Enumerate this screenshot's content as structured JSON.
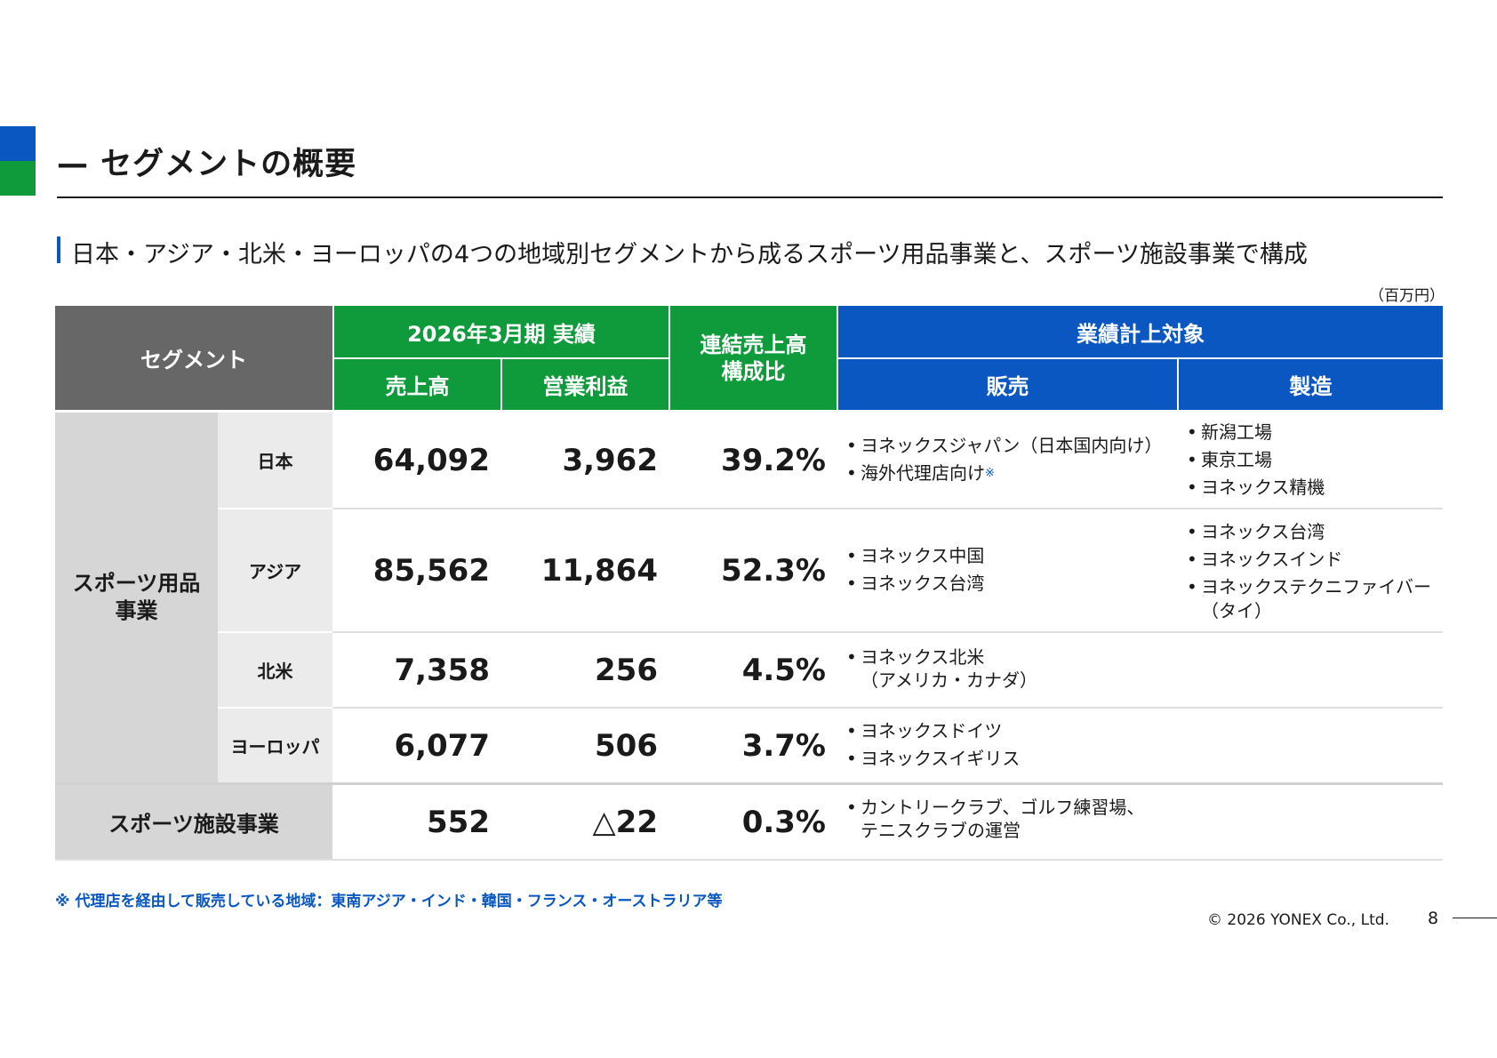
{
  "header": {
    "title": "— セグメントの概要",
    "subtitle": "日本・アジア・北米・ヨーロッパの4つの地域別セグメントから成るスポーツ用品事業と、スポーツ施設事業で構成",
    "unit": "（百万円）"
  },
  "table": {
    "headers": {
      "segment": "セグメント",
      "results": "2026年3月期 実績",
      "sales": "売上高",
      "operating_profit": "営業利益",
      "ratio": "連結売上高\n構成比",
      "performance_target": "業績計上対象",
      "sales_channel": "販売",
      "manufacturing": "製造"
    },
    "group_label": "スポーツ用品\n事業",
    "rows": [
      {
        "region": "日本",
        "sales": "64,092",
        "profit": "3,962",
        "ratio": "39.2%",
        "sales_items": [
          "ヨネックスジャパン（日本国内向け）",
          "海外代理店向け"
        ],
        "mfg_items": [
          "新潟工場",
          "東京工場",
          "ヨネックス精機"
        ]
      },
      {
        "region": "アジア",
        "sales": "85,562",
        "profit": "11,864",
        "ratio": "52.3%",
        "sales_items": [
          "ヨネックス中国",
          "ヨネックス台湾"
        ],
        "mfg_items": [
          "ヨネックス台湾",
          "ヨネックスインド",
          "ヨネックステクニファイバー",
          "（タイ）"
        ]
      },
      {
        "region": "北米",
        "sales": "7,358",
        "profit": "256",
        "ratio": "4.5%",
        "sales_items": [
          "ヨネックス北米",
          "（アメリカ・カナダ）"
        ],
        "mfg_items": []
      },
      {
        "region": "ヨーロッパ",
        "sales": "6,077",
        "profit": "506",
        "ratio": "3.7%",
        "sales_items": [
          "ヨネックスドイツ",
          "ヨネックスイギリス"
        ],
        "mfg_items": []
      }
    ],
    "facility": {
      "label": "スポーツ施設事業",
      "sales": "552",
      "profit": "△22",
      "ratio": "0.3%",
      "sales_items": [
        "カントリークラブ、ゴルフ練習場、",
        "テニスクラブの運営"
      ]
    },
    "note_mark": "※"
  },
  "footnote": "※ 代理店を経由して販売している地域：東南アジア・インド・韓国・フランス・オーストラリア等",
  "footer": {
    "copyright": "© 2026 YONEX Co., Ltd.",
    "page": "8"
  },
  "colors": {
    "blue": "#0a57c2",
    "green": "#0f9a3c",
    "header_gray": "#676767"
  }
}
